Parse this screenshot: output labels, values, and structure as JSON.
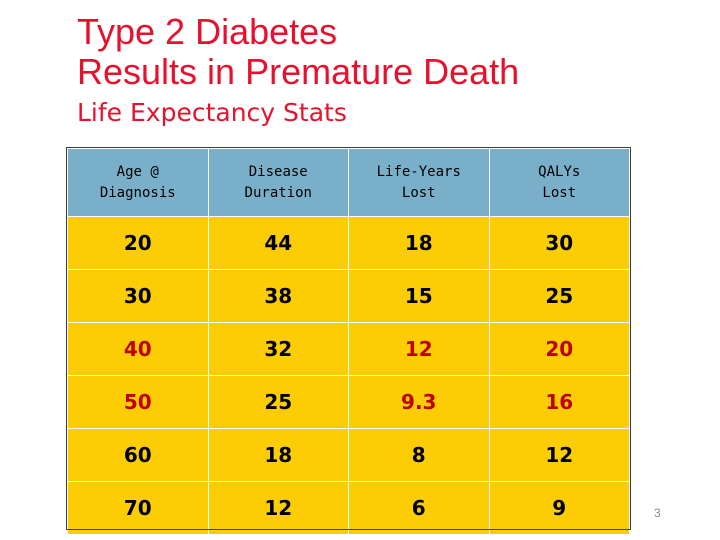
{
  "title": {
    "line1": "Type 2 Diabetes",
    "line2": "Results in Premature Death"
  },
  "subtitle": "Life Expectancy Stats",
  "table": {
    "headers": [
      "Age @\nDiagnosis",
      "Disease\nDuration",
      "Life-Years\nLost",
      "QALYs\nLost"
    ],
    "rows": [
      [
        "20",
        "44",
        "18",
        "30"
      ],
      [
        "30",
        "38",
        "15",
        "25"
      ],
      [
        "40",
        "32",
        "12",
        "20"
      ],
      [
        "50",
        "25",
        "9.3",
        "16"
      ],
      [
        "60",
        "18",
        "8",
        "12"
      ],
      [
        "70",
        "12",
        "6",
        "9"
      ]
    ]
  },
  "page_number": "3",
  "colors": {
    "title": "#e8112d",
    "header_bg": "#7aafc9",
    "cell_bg": "#fccd04",
    "highlight_text": "#c00000"
  }
}
